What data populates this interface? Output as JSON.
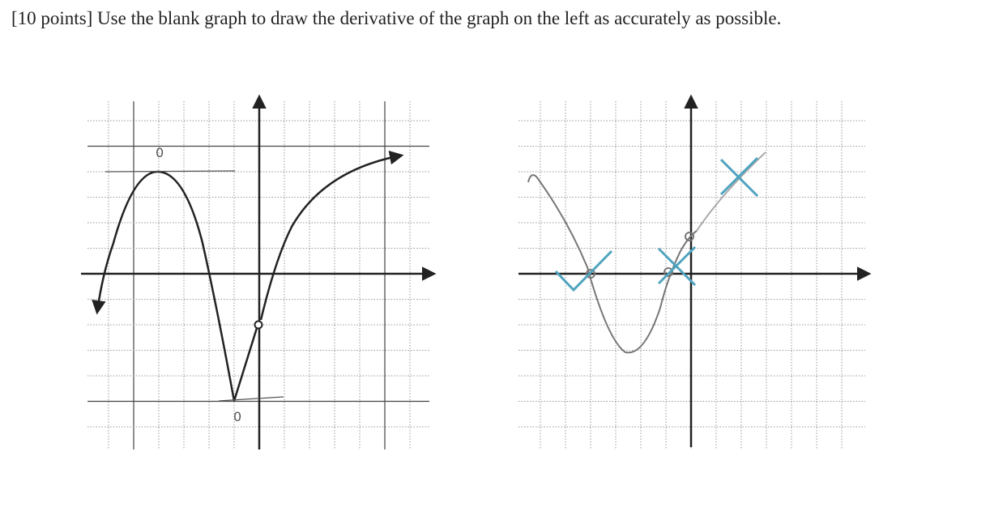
{
  "question": "[10 points] Use the blank graph to draw the derivative of the graph on the left as accurately as possible.",
  "annotations": [
    "0",
    "0"
  ]
}
